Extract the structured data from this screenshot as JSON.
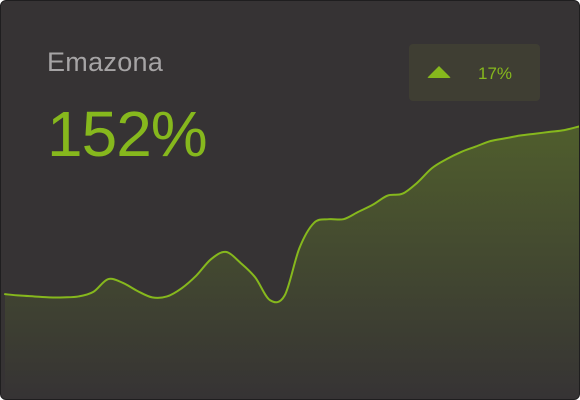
{
  "card": {
    "title": "Emazona",
    "value": "152%",
    "change": "17%",
    "change_direction": "up",
    "change_icon": "triangle-up-icon"
  },
  "colors": {
    "background": "#363334",
    "accent": "#86b81d",
    "label": "#a6a4a5",
    "badge": "#3f3e33"
  },
  "chart_data": {
    "type": "area",
    "title": "",
    "xlabel": "",
    "ylabel": "",
    "grid": false,
    "legend": "none",
    "x": [
      0,
      1,
      2,
      3,
      4,
      5,
      6,
      7,
      8,
      9,
      10,
      11,
      12,
      13,
      14,
      15,
      16,
      17,
      18,
      19,
      20,
      21,
      22,
      23,
      24,
      25,
      26,
      27,
      28,
      29,
      30,
      31,
      32,
      33,
      34,
      35,
      36,
      37,
      38,
      39
    ],
    "series": [
      {
        "values": [
          9.5,
          8,
          7,
          6,
          6,
          7,
          12,
          26,
          22,
          13,
          6,
          7,
          16,
          30,
          48,
          56,
          44,
          28,
          3,
          8,
          60,
          88,
          92,
          92,
          100,
          108,
          118,
          120,
          132,
          148,
          158,
          166,
          172,
          178,
          181,
          184,
          186,
          188,
          190,
          194
        ]
      }
    ],
    "ylim": [
      -20,
      200
    ]
  }
}
